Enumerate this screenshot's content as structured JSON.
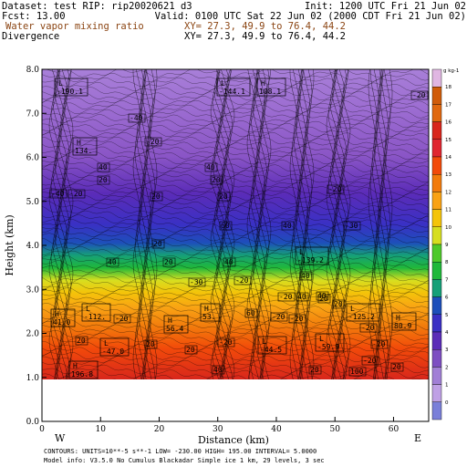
{
  "header": {
    "dataset": "Dataset: test  RIP: rip20020621 d3",
    "init": "Init: 1200 UTC Fri 21 Jun 02",
    "fcst": "Fcst:    13.00",
    "valid": "Valid: 0100 UTC Sat 22 Jun 02 (2000 CDT Fri 21 Jun 02)",
    "field1": "Water vapor mixing ratio",
    "xy1": "XY=  27.3, 49.9 to  76.4, 44.2",
    "field2": "Divergence",
    "xy2": "XY=  27.3, 49.9 to  76.4, 44.2"
  },
  "footer": {
    "line1": "CONTOURS:  UNITS=10**-5 s**-1   LOW=  -230.00    HIGH=  195.00    INTERVAL=   5.0000",
    "line2": "Model info: V3.5.0 No Cumulus Blackadar  Simple ice    1 km,   29 levels,     3 sec"
  },
  "axis_ends": {
    "left": "W",
    "right": "E"
  },
  "colorbar": {
    "units": "g kg-1",
    "labels": [
      "18",
      "17",
      "16",
      "15",
      "14",
      "13",
      "12",
      "11",
      "10",
      "9",
      "8",
      "7",
      "6",
      "5",
      "4",
      "3",
      "2",
      "1",
      "0"
    ],
    "colors": [
      "#e0b6e2",
      "#d05c0a",
      "#e0680f",
      "#d8261c",
      "#e02630",
      "#f24a0a",
      "#f27b0c",
      "#f9a214",
      "#f4c40a",
      "#d6de20",
      "#4ec92a",
      "#20b83a",
      "#16a078",
      "#1d4fba",
      "#3a30c4",
      "#5b2cb8",
      "#7d4ec2",
      "#a17fd6",
      "#bfa0e5",
      "#7a7fd9"
    ]
  },
  "labels": [
    {
      "type": "L",
      "value": "-190.1"
    },
    {
      "type": "L",
      "value": "-144.1"
    },
    {
      "type": "H",
      "value": "108.1"
    },
    {
      "type": "H",
      "value": "134."
    },
    {
      "type": "L",
      "value": "-139.2"
    },
    {
      "type": "L",
      "value": "-112."
    },
    {
      "type": "H",
      "value": "41.0"
    },
    {
      "type": "H",
      "value": "53."
    },
    {
      "type": "L",
      "value": "-125.2"
    },
    {
      "type": "H",
      "value": "56.4"
    },
    {
      "type": "H",
      "value": "80.9"
    },
    {
      "type": "L",
      "value": "-47.0"
    },
    {
      "type": "L",
      "value": "-44.5"
    },
    {
      "type": "L",
      "value": "-59.9"
    },
    {
      "type": "H",
      "value": "196.8"
    }
  ],
  "contour_values": [
    "-20",
    "-40",
    "-20",
    "40",
    "20",
    "40",
    "20",
    "20",
    "20",
    "-40",
    "-20",
    "60",
    "40",
    "-20",
    "-30",
    "20",
    "40",
    "20",
    "40",
    "-20",
    "-30",
    "40",
    "40",
    "-20",
    "40",
    "60",
    "20",
    "-20",
    "-20",
    "-20",
    "-20",
    "20",
    "20",
    "-20",
    "20",
    "-20",
    "40",
    "20",
    "100",
    "-20",
    "20",
    "20"
  ],
  "chart_data": {
    "type": "heatmap",
    "xlabel": "Distance (km)",
    "ylabel": "Height (km)",
    "xlim": [
      0,
      66
    ],
    "ylim": [
      0,
      8
    ],
    "x_ticks": [
      "0",
      "10",
      "20",
      "30",
      "40",
      "50",
      "60"
    ],
    "y_ticks": [
      "0.0",
      "1.0",
      "2.0",
      "3.0",
      "4.0",
      "5.0",
      "6.0",
      "7.0",
      "8.0"
    ],
    "series": [
      {
        "name": "Water vapor mixing ratio",
        "units": "g kg-1",
        "range": [
          0,
          18
        ]
      },
      {
        "name": "Divergence",
        "units": "10**-5 s**-1",
        "contour_interval": 5.0,
        "low": -230.0,
        "high": 195.0
      }
    ]
  }
}
